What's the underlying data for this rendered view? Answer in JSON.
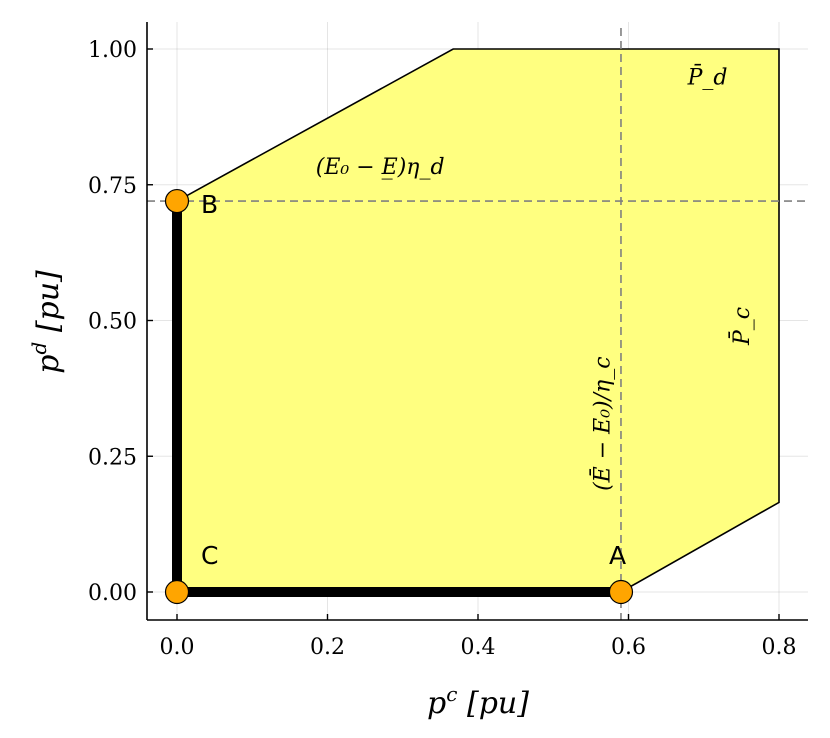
{
  "chart_data": {
    "type": "area",
    "xlabel": "p^c [pu]",
    "ylabel": "p^d [pu]",
    "xlim": [
      -0.04,
      0.84
    ],
    "ylim": [
      -0.05,
      1.05
    ],
    "xticks": [
      0.0,
      0.2,
      0.4,
      0.6,
      0.8
    ],
    "xtick_labels": [
      "0.0",
      "0.2",
      "0.4",
      "0.6",
      "0.8"
    ],
    "yticks": [
      0.0,
      0.25,
      0.5,
      0.75,
      1.0
    ],
    "ytick_labels": [
      "0.00",
      "0.25",
      "0.50",
      "0.75",
      "1.00"
    ],
    "grid": true,
    "feasible_region": {
      "fill_color": "#ffff80",
      "edge_color": "#000000",
      "polygon": [
        [
          0,
          0
        ],
        [
          0.59,
          0
        ],
        [
          0.8,
          0.165
        ],
        [
          0.8,
          1.0
        ],
        [
          0.367,
          1.0
        ],
        [
          0,
          0.72
        ]
      ]
    },
    "reference_lines": {
      "vertical_x": 0.59,
      "horizontal_y": 0.72,
      "color": "#808080",
      "style": "dashed"
    },
    "thick_path": {
      "points": [
        [
          0,
          0.72
        ],
        [
          0,
          0
        ],
        [
          0.59,
          0
        ]
      ],
      "color": "#000000"
    },
    "points": [
      {
        "name": "A",
        "x": 0.59,
        "y": 0.0
      },
      {
        "name": "B",
        "x": 0.0,
        "y": 0.72
      },
      {
        "name": "C",
        "x": 0.0,
        "y": 0.0
      }
    ],
    "point_color": "#ffa500",
    "annotations": [
      {
        "text": "(E₀ − E̲)η_d",
        "x": 0.27,
        "y": 0.77
      },
      {
        "text": "(Ē − E₀)/η_c",
        "x": 0.575,
        "y": 0.31,
        "rotate": -90
      },
      {
        "text": "P̄_d",
        "x": 0.705,
        "y": 0.935
      },
      {
        "text": "P̄_c",
        "x": 0.76,
        "y": 0.49,
        "rotate": -90
      }
    ]
  }
}
